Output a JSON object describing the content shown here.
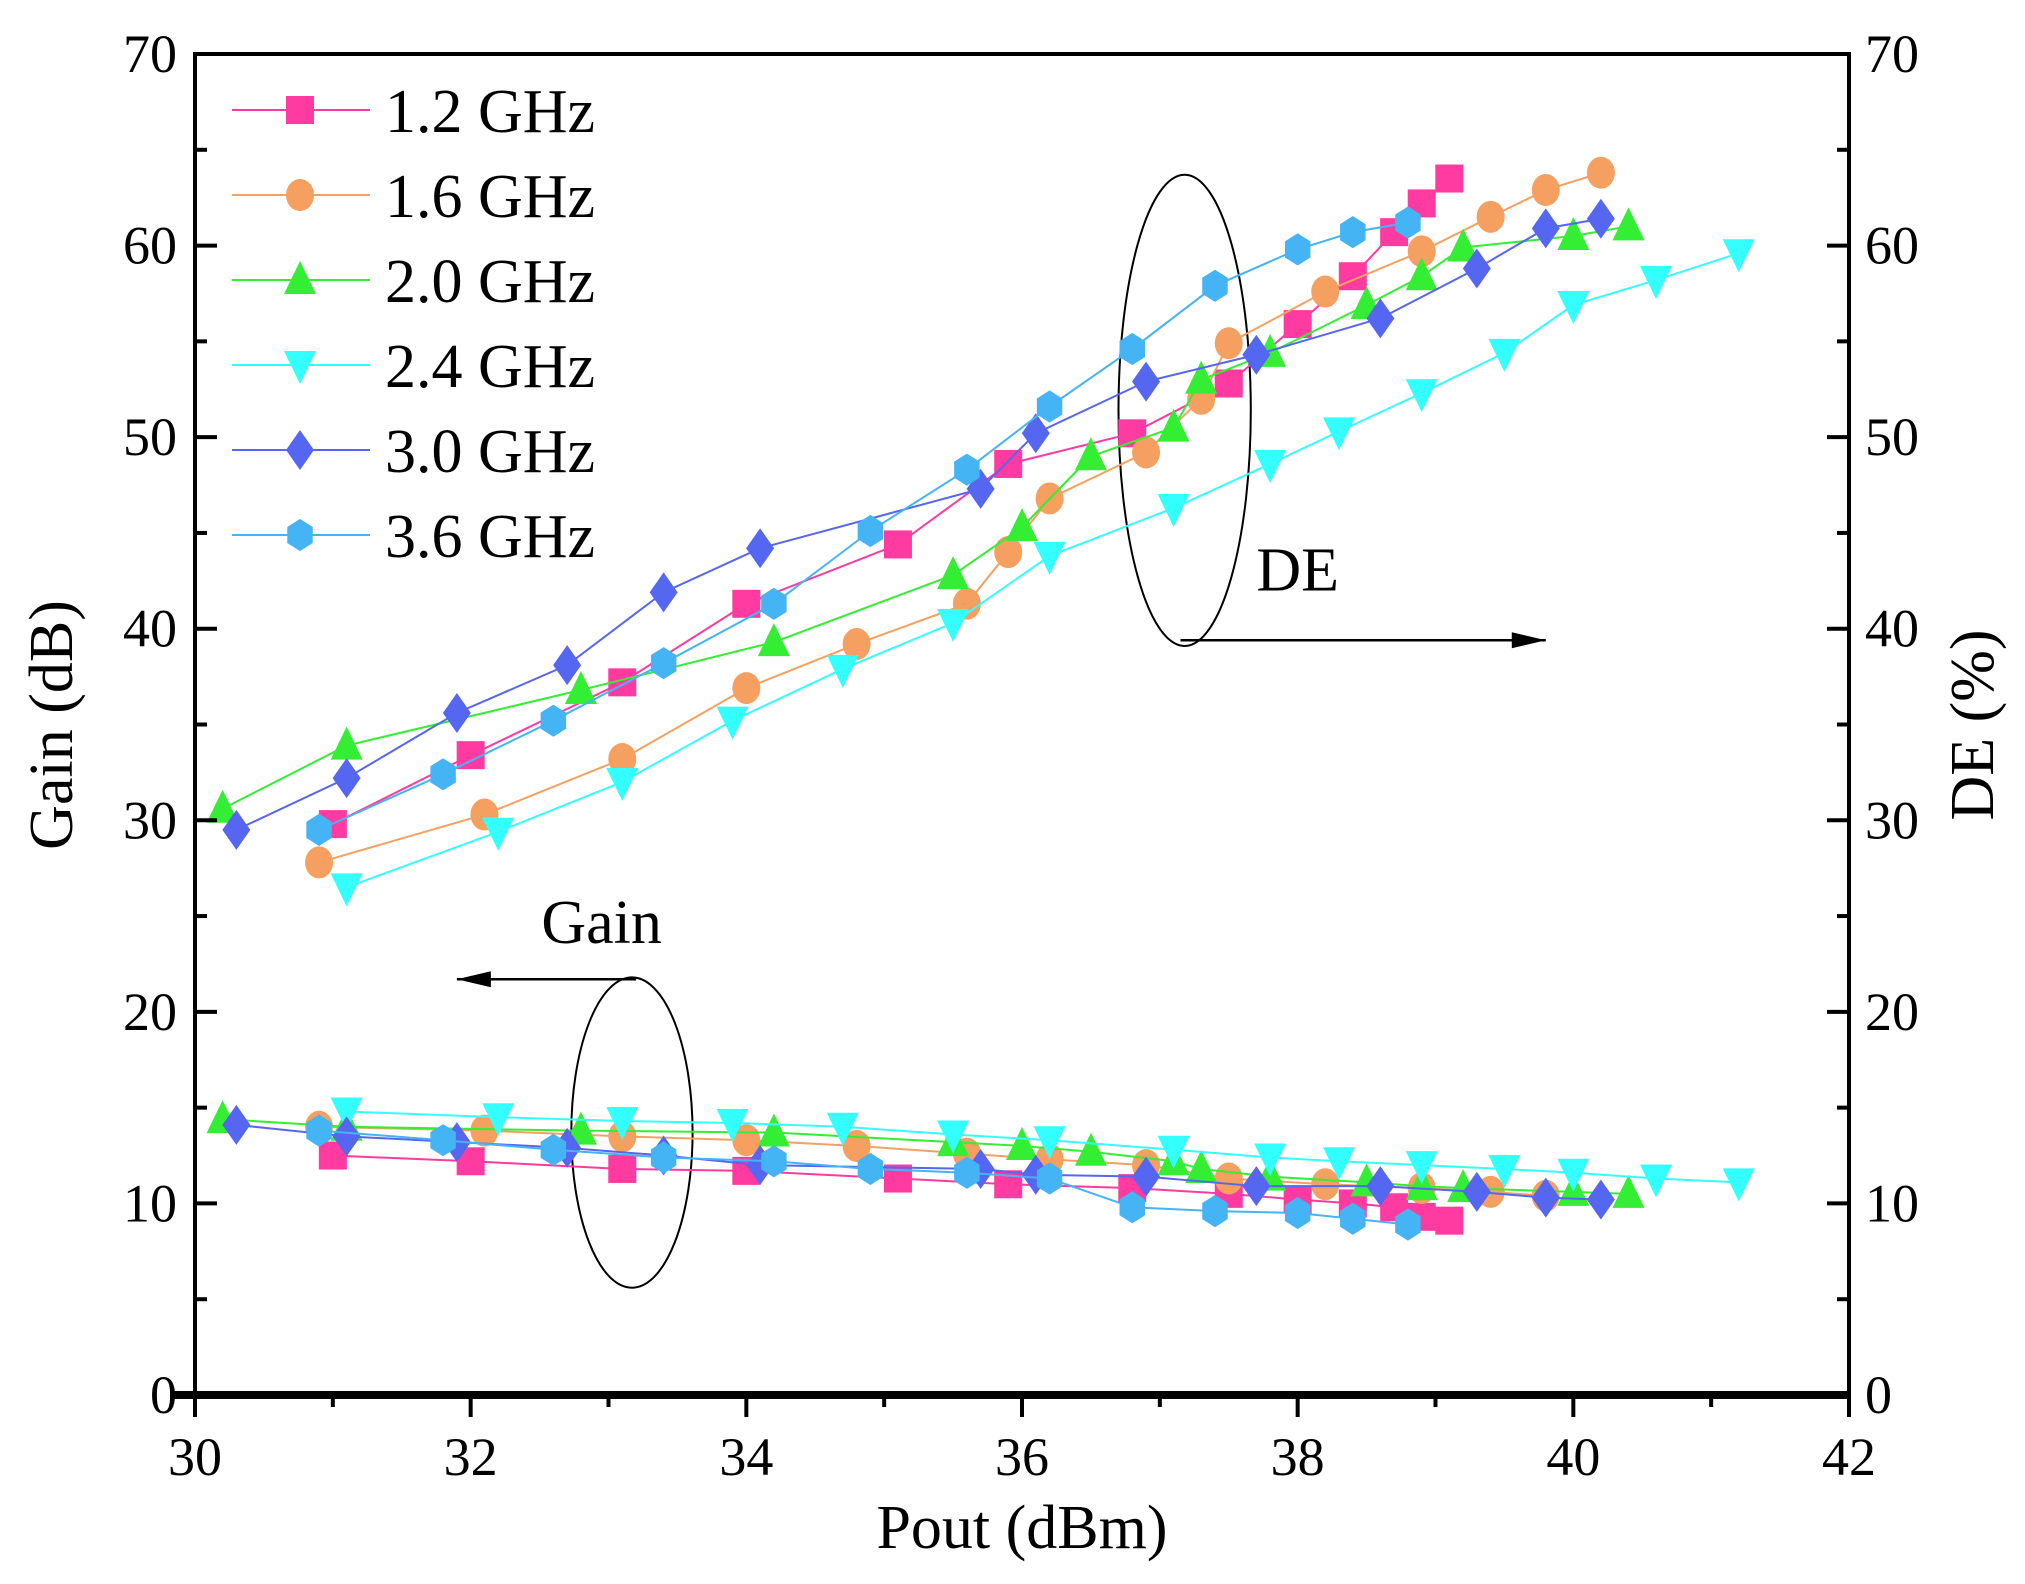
{
  "chart_data": {
    "type": "line",
    "xlabel": "Pout (dBm)",
    "ylabel": "Gain (dB)",
    "y2label": "DE (%)",
    "xlim": [
      30,
      42
    ],
    "ylim": [
      0,
      70
    ],
    "y2lim": [
      0,
      70
    ],
    "xticks": [
      "30",
      "32",
      "34",
      "36",
      "38",
      "40",
      "42"
    ],
    "yticks": [
      "0",
      "10",
      "20",
      "30",
      "40",
      "50",
      "60",
      "70"
    ],
    "y2ticks": [
      "0",
      "10",
      "20",
      "30",
      "40",
      "50",
      "60",
      "70"
    ],
    "grid": false,
    "legend_position": "top-left",
    "annotations": [
      {
        "text": "DE",
        "ellipse_center": [
          37.18,
          51.4
        ],
        "ellipse_radii": [
          0.48,
          12.3
        ],
        "arrow_from": [
          37.15,
          39.4
        ],
        "arrow_to": [
          39.8,
          39.4
        ],
        "label_at": [
          38.0,
          42.0
        ]
      },
      {
        "text": "Gain",
        "ellipse_center": [
          33.17,
          13.7
        ],
        "ellipse_radii": [
          0.44,
          8.1
        ],
        "arrow_from": [
          33.2,
          21.7
        ],
        "arrow_to": [
          31.9,
          21.7
        ],
        "label_at": [
          32.95,
          23.6
        ]
      }
    ],
    "series": [
      {
        "name": "1.2 GHz",
        "color": "#ff3aa0",
        "marker": "square",
        "de": [
          [
            31.0,
            29.8
          ],
          [
            32.0,
            33.4
          ],
          [
            33.1,
            37.2
          ],
          [
            34.0,
            41.3
          ],
          [
            35.1,
            44.4
          ],
          [
            35.9,
            48.6
          ],
          [
            36.8,
            50.2
          ],
          [
            37.5,
            52.8
          ],
          [
            38.0,
            55.9
          ],
          [
            38.4,
            58.4
          ],
          [
            38.7,
            60.7
          ],
          [
            38.9,
            62.2
          ],
          [
            39.1,
            63.5
          ]
        ],
        "gain": [
          [
            31.0,
            12.5
          ],
          [
            32.0,
            12.2
          ],
          [
            33.1,
            11.8
          ],
          [
            34.0,
            11.7
          ],
          [
            35.1,
            11.3
          ],
          [
            35.9,
            11.0
          ],
          [
            36.8,
            10.8
          ],
          [
            37.5,
            10.5
          ],
          [
            38.0,
            10.2
          ],
          [
            38.4,
            10.0
          ],
          [
            38.7,
            9.8
          ],
          [
            38.9,
            9.3
          ],
          [
            39.1,
            9.1
          ]
        ]
      },
      {
        "name": "1.6 GHz",
        "color": "#f5a060",
        "marker": "circle",
        "de": [
          [
            30.9,
            27.8
          ],
          [
            32.1,
            30.3
          ],
          [
            33.1,
            33.2
          ],
          [
            34.0,
            36.9
          ],
          [
            34.8,
            39.2
          ],
          [
            35.6,
            41.3
          ],
          [
            35.9,
            44.0
          ],
          [
            36.2,
            46.8
          ],
          [
            36.9,
            49.2
          ],
          [
            37.3,
            52.0
          ],
          [
            37.5,
            54.9
          ],
          [
            38.2,
            57.6
          ],
          [
            38.9,
            59.7
          ],
          [
            39.4,
            61.5
          ],
          [
            39.8,
            62.9
          ],
          [
            40.2,
            63.8
          ]
        ],
        "gain": [
          [
            30.9,
            14.0
          ],
          [
            32.1,
            13.8
          ],
          [
            33.1,
            13.5
          ],
          [
            34.0,
            13.3
          ],
          [
            34.8,
            13.0
          ],
          [
            35.6,
            12.6
          ],
          [
            36.2,
            12.3
          ],
          [
            36.9,
            12.0
          ],
          [
            37.5,
            11.3
          ],
          [
            38.2,
            11.0
          ],
          [
            38.9,
            10.8
          ],
          [
            39.4,
            10.6
          ],
          [
            39.8,
            10.4
          ]
        ]
      },
      {
        "name": "2.0 GHz",
        "color": "#33ee33",
        "marker": "triangle-up",
        "de": [
          [
            30.2,
            30.6
          ],
          [
            31.1,
            33.9
          ],
          [
            32.8,
            36.8
          ],
          [
            34.2,
            39.3
          ],
          [
            35.5,
            42.8
          ],
          [
            36.0,
            45.3
          ],
          [
            36.5,
            49.0
          ],
          [
            37.1,
            50.5
          ],
          [
            37.3,
            53.0
          ],
          [
            37.8,
            54.4
          ],
          [
            38.5,
            56.9
          ],
          [
            38.9,
            58.4
          ],
          [
            39.2,
            59.9
          ],
          [
            40.0,
            60.5
          ],
          [
            40.4,
            61.0
          ]
        ],
        "gain": [
          [
            30.2,
            14.4
          ],
          [
            31.1,
            14.0
          ],
          [
            32.8,
            13.8
          ],
          [
            34.2,
            13.7
          ],
          [
            35.5,
            13.2
          ],
          [
            36.0,
            13.0
          ],
          [
            36.5,
            12.7
          ],
          [
            37.1,
            12.2
          ],
          [
            37.3,
            11.8
          ],
          [
            37.8,
            11.4
          ],
          [
            38.5,
            11.1
          ],
          [
            38.9,
            10.9
          ],
          [
            39.2,
            10.8
          ],
          [
            40.0,
            10.6
          ],
          [
            40.4,
            10.5
          ]
        ]
      },
      {
        "name": "2.4 GHz",
        "color": "#33ffff",
        "marker": "triangle-down",
        "de": [
          [
            31.1,
            26.5
          ],
          [
            32.2,
            29.4
          ],
          [
            33.1,
            32.0
          ],
          [
            33.9,
            35.2
          ],
          [
            34.7,
            37.9
          ],
          [
            35.5,
            40.3
          ],
          [
            36.2,
            43.8
          ],
          [
            37.1,
            46.3
          ],
          [
            37.8,
            48.6
          ],
          [
            38.3,
            50.3
          ],
          [
            38.9,
            52.3
          ],
          [
            39.5,
            54.4
          ],
          [
            40.0,
            56.9
          ],
          [
            40.6,
            58.2
          ],
          [
            41.2,
            59.6
          ]
        ],
        "gain": [
          [
            31.1,
            14.8
          ],
          [
            32.2,
            14.5
          ],
          [
            33.1,
            14.3
          ],
          [
            33.9,
            14.2
          ],
          [
            34.7,
            14.0
          ],
          [
            35.5,
            13.6
          ],
          [
            36.2,
            13.3
          ],
          [
            37.1,
            12.8
          ],
          [
            37.8,
            12.4
          ],
          [
            38.3,
            12.2
          ],
          [
            38.9,
            12.0
          ],
          [
            39.5,
            11.8
          ],
          [
            40.0,
            11.6
          ],
          [
            40.6,
            11.3
          ],
          [
            41.2,
            11.1
          ]
        ]
      },
      {
        "name": "3.0 GHz",
        "color": "#5566f0",
        "marker": "diamond",
        "de": [
          [
            30.3,
            29.5
          ],
          [
            31.1,
            32.2
          ],
          [
            31.9,
            35.6
          ],
          [
            32.7,
            38.1
          ],
          [
            33.4,
            41.9
          ],
          [
            34.1,
            44.2
          ],
          [
            35.7,
            47.3
          ],
          [
            36.1,
            50.2
          ],
          [
            36.9,
            52.9
          ],
          [
            37.7,
            54.3
          ],
          [
            38.6,
            56.2
          ],
          [
            39.3,
            58.8
          ],
          [
            39.8,
            60.9
          ],
          [
            40.2,
            61.4
          ]
        ],
        "gain": [
          [
            30.3,
            14.1
          ],
          [
            31.1,
            13.5
          ],
          [
            31.9,
            13.2
          ],
          [
            32.7,
            12.9
          ],
          [
            33.4,
            12.5
          ],
          [
            34.1,
            12.0
          ],
          [
            35.7,
            11.8
          ],
          [
            36.1,
            11.5
          ],
          [
            36.9,
            11.4
          ],
          [
            37.7,
            10.9
          ],
          [
            38.6,
            10.9
          ],
          [
            39.3,
            10.6
          ],
          [
            39.8,
            10.3
          ],
          [
            40.2,
            10.2
          ]
        ]
      },
      {
        "name": "3.6 GHz",
        "color": "#44b4f4",
        "marker": "hexagon",
        "de": [
          [
            30.9,
            29.5
          ],
          [
            31.8,
            32.4
          ],
          [
            32.6,
            35.2
          ],
          [
            33.4,
            38.2
          ],
          [
            34.2,
            41.3
          ],
          [
            34.9,
            45.1
          ],
          [
            35.6,
            48.3
          ],
          [
            36.2,
            51.6
          ],
          [
            36.8,
            54.6
          ],
          [
            37.4,
            57.9
          ],
          [
            38.0,
            59.8
          ],
          [
            38.4,
            60.7
          ],
          [
            38.8,
            61.2
          ]
        ],
        "gain": [
          [
            30.9,
            13.8
          ],
          [
            31.8,
            13.3
          ],
          [
            32.6,
            12.8
          ],
          [
            33.4,
            12.4
          ],
          [
            34.2,
            12.2
          ],
          [
            34.9,
            11.8
          ],
          [
            35.6,
            11.6
          ],
          [
            36.2,
            11.3
          ],
          [
            36.8,
            9.8
          ],
          [
            37.4,
            9.6
          ],
          [
            38.0,
            9.5
          ],
          [
            38.4,
            9.2
          ],
          [
            38.8,
            8.9
          ]
        ]
      }
    ]
  }
}
